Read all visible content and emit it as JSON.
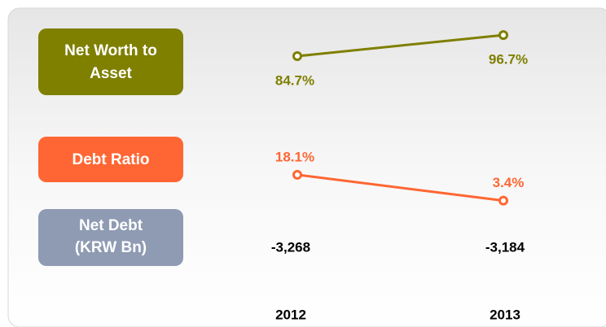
{
  "chart_data": [
    {
      "type": "line",
      "title": [
        "Net Worth to",
        "Asset"
      ],
      "categories": [
        "2012",
        "2013"
      ],
      "values": [
        84.7,
        96.7
      ],
      "value_labels": [
        "84.7%",
        "96.7%"
      ],
      "color": "#7f7f00",
      "ylim": [
        75,
        100
      ],
      "label_side": "below"
    },
    {
      "type": "line",
      "title": "Debt Ratio",
      "values": [
        18.1,
        3.4
      ],
      "value_labels": [
        "18.1%",
        "3.4%"
      ],
      "color": "#ff6633",
      "ylim": [
        0,
        25
      ],
      "label_side": "above"
    },
    {
      "type": "table",
      "title": [
        "Net Debt",
        "(KRW Bn)"
      ],
      "values": [
        -3268,
        -3184
      ],
      "value_labels": [
        "-3,268",
        "-3,184"
      ],
      "color": "#000000"
    }
  ]
}
